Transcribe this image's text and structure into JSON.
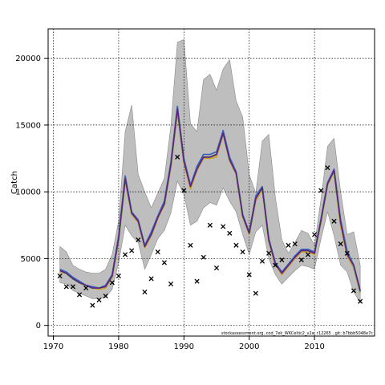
{
  "chart_data": {
    "type": "line",
    "title": "",
    "xlabel": "",
    "ylabel": "Catch",
    "xlim": [
      1969.2,
      2019.2
    ],
    "ylim": [
      -800,
      22200
    ],
    "x_ticks": [
      1970,
      1980,
      1990,
      2000,
      2010
    ],
    "y_ticks": [
      0,
      5000,
      10000,
      15000,
      20000
    ],
    "grid": true,
    "footnote": "stockassessment.org, cod_7ek_WKCeltic2_v2a, r12265 , git: b7bbb5048e7c",
    "colors": {
      "band": "#bebebe",
      "band_edge": "#888888",
      "lines": [
        "#7fbf3f",
        "#d0a020",
        "#3060c0",
        "#40a0b0",
        "#602080"
      ],
      "markers": "#000000"
    },
    "x": [
      1971,
      1972,
      1973,
      1974,
      1975,
      1976,
      1977,
      1978,
      1979,
      1980,
      1981,
      1982,
      1983,
      1984,
      1985,
      1986,
      1987,
      1988,
      1989,
      1990,
      1991,
      1992,
      1993,
      1994,
      1995,
      1996,
      1997,
      1998,
      1999,
      2000,
      2001,
      2002,
      2003,
      2004,
      2005,
      2006,
      2007,
      2008,
      2009,
      2010,
      2011,
      2012,
      2013,
      2014,
      2015,
      2016,
      2017
    ],
    "band_lower": [
      3200,
      3100,
      2600,
      2400,
      2200,
      2000,
      2000,
      2100,
      2700,
      4700,
      7500,
      6700,
      6200,
      4200,
      5300,
      6500,
      7100,
      8400,
      10800,
      9800,
      7500,
      7800,
      8800,
      9200,
      9000,
      10300,
      9300,
      8500,
      6800,
      5300,
      7000,
      7500,
      5000,
      3800,
      3100,
      3600,
      4100,
      4500,
      4400,
      4200,
      6500,
      8500,
      6700,
      4500,
      4000,
      2500,
      1700
    ],
    "band_upper": [
      5900,
      5500,
      4500,
      4200,
      4000,
      3900,
      3900,
      4200,
      5300,
      7800,
      14500,
      16500,
      11300,
      10000,
      8800,
      9900,
      11000,
      14900,
      21200,
      21400,
      15100,
      14500,
      18400,
      18800,
      17600,
      19200,
      19900,
      16800,
      15600,
      11300,
      9900,
      13800,
      14300,
      9600,
      6400,
      5400,
      6200,
      7100,
      6900,
      6000,
      9500,
      13400,
      14000,
      10000,
      6800,
      7000,
      4500
    ],
    "series": [
      {
        "values": [
          4100,
          3900,
          3500,
          3200,
          3000,
          2800,
          2800,
          2900,
          3700,
          6500,
          11000,
          8400,
          7800,
          5900,
          6800,
          8100,
          9100,
          12000,
          16200,
          12300,
          10400,
          11700,
          12600,
          12600,
          12800,
          14400,
          12400,
          11400,
          8200,
          6900,
          9500,
          10300,
          6400,
          4600,
          3900,
          4500,
          5100,
          5600,
          5600,
          5400,
          7900,
          10600,
          11600,
          7600,
          5400,
          4400,
          2500
        ]
      },
      {
        "values": [
          4000,
          3900,
          3500,
          3200,
          3000,
          2800,
          2700,
          2800,
          3600,
          6400,
          10800,
          8300,
          7700,
          5800,
          6700,
          8000,
          9000,
          11800,
          16000,
          12100,
          10200,
          11600,
          12500,
          12500,
          12600,
          14300,
          12300,
          11300,
          8100,
          6800,
          9300,
          10200,
          6300,
          4500,
          3800,
          4400,
          5000,
          5500,
          5500,
          5300,
          7800,
          10500,
          11500,
          7400,
          5200,
          4300,
          2400
        ]
      },
      {
        "values": [
          4200,
          4000,
          3600,
          3300,
          3000,
          2900,
          2800,
          3000,
          3800,
          6700,
          11200,
          8500,
          7900,
          6000,
          7000,
          8200,
          9300,
          12200,
          16400,
          12500,
          10500,
          11900,
          12800,
          12800,
          13000,
          14600,
          12600,
          11500,
          8300,
          7000,
          9700,
          10400,
          6500,
          4700,
          4000,
          4600,
          5200,
          5700,
          5700,
          5500,
          8000,
          10700,
          11700,
          7900,
          5600,
          4500,
          2600
        ]
      },
      {
        "values": [
          4100,
          3900,
          3500,
          3200,
          3000,
          2800,
          2800,
          2900,
          3700,
          6500,
          11000,
          8400,
          7800,
          5900,
          6800,
          8100,
          9100,
          12000,
          16200,
          12300,
          10400,
          11700,
          12600,
          12600,
          12800,
          14400,
          12400,
          11400,
          8200,
          6900,
          9500,
          10300,
          6400,
          4600,
          3900,
          4500,
          5100,
          5600,
          5600,
          5400,
          7900,
          10600,
          11600,
          7700,
          5500,
          4400,
          2500
        ]
      },
      {
        "values": [
          4100,
          3900,
          3500,
          3200,
          3000,
          2800,
          2800,
          2900,
          3700,
          6500,
          11000,
          8400,
          7800,
          5900,
          6800,
          8100,
          9100,
          12000,
          16200,
          12300,
          10400,
          11700,
          12600,
          12600,
          12800,
          14400,
          12400,
          11400,
          8200,
          6900,
          9500,
          10300,
          6400,
          4600,
          3900,
          4500,
          5100,
          5600,
          5600,
          5400,
          7900,
          10600,
          11600,
          7700,
          5300,
          4500,
          2600
        ]
      }
    ],
    "observed": {
      "x": [
        1971,
        1972,
        1973,
        1974,
        1975,
        1976,
        1977,
        1978,
        1979,
        1980,
        1981,
        1982,
        1983,
        1984,
        1985,
        1986,
        1987,
        1988,
        1989,
        1990,
        1991,
        1992,
        1993,
        1994,
        1995,
        1996,
        1997,
        1998,
        1999,
        2000,
        2001,
        2002,
        2003,
        2004,
        2005,
        2006,
        2007,
        2008,
        2009,
        2010,
        2011,
        2012,
        2013,
        2014,
        2015,
        2016,
        2017
      ],
      "y": [
        3700,
        2900,
        2900,
        2300,
        2800,
        1500,
        1900,
        2200,
        3200,
        3700,
        5300,
        5600,
        6400,
        2500,
        3500,
        5500,
        4700,
        3100,
        12600,
        10100,
        6000,
        3300,
        5100,
        7500,
        4300,
        7400,
        6900,
        6000,
        5500,
        3800,
        2400,
        4800,
        5400,
        4500,
        4900,
        6000,
        6100,
        4900,
        5300,
        6800,
        10100,
        11800,
        7800,
        6100,
        5400,
        2600,
        1800
      ]
    }
  }
}
